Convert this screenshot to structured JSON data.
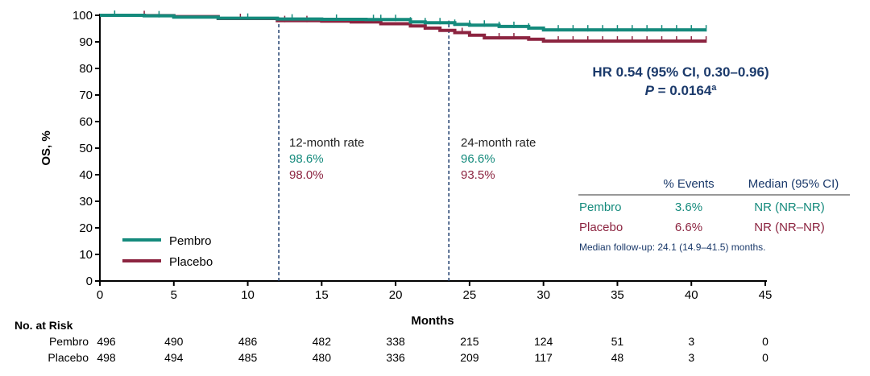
{
  "chart_data": {
    "type": "line",
    "ylabel": "OS, %",
    "xlabel": "Months",
    "xlim": [
      0,
      45
    ],
    "ylim": [
      0,
      100
    ],
    "xticks": [
      0,
      5,
      10,
      15,
      20,
      25,
      30,
      35,
      40,
      45
    ],
    "yticks": [
      0,
      10,
      20,
      30,
      40,
      50,
      60,
      70,
      80,
      90,
      100
    ],
    "grid": false,
    "legend_placement": "bottom-left",
    "series": [
      {
        "name": "Pembro",
        "color": "#148a7c",
        "x": [
          0,
          3,
          5,
          8,
          12,
          15,
          18,
          21,
          22,
          24,
          25,
          27,
          29,
          30,
          41
        ],
        "y": [
          100,
          99.8,
          99.3,
          98.9,
          98.6,
          98.5,
          98.4,
          97.5,
          97.2,
          96.6,
          96.3,
          95.8,
          95.2,
          94.5,
          94.5
        ],
        "censor_x": [
          1,
          4,
          10,
          13,
          16,
          18.5,
          19,
          20,
          21,
          22,
          23,
          24,
          25,
          26,
          27,
          28,
          29,
          31,
          32,
          33,
          34,
          35,
          36,
          37,
          38,
          39,
          40,
          41
        ]
      },
      {
        "name": "Placebo",
        "color": "#8c2440",
        "x": [
          0,
          3,
          5,
          8,
          12,
          15,
          17,
          19,
          21,
          22,
          23,
          24,
          25,
          26,
          29,
          30,
          41
        ],
        "y": [
          100,
          99.9,
          99.5,
          98.8,
          98.0,
          97.8,
          97.5,
          96.8,
          96.0,
          95.2,
          94.3,
          93.5,
          92.5,
          91.5,
          91.0,
          90.3,
          90.3
        ],
        "censor_x": [
          3,
          9.5,
          12.5,
          14,
          22,
          24.5,
          27,
          28,
          31,
          32,
          33,
          34,
          35,
          36,
          37,
          38,
          39,
          40,
          41
        ]
      }
    ],
    "annotations": {
      "rate12": {
        "x": 12.1,
        "title": "12-month rate",
        "pembro": "98.6%",
        "placebo": "98.0%"
      },
      "rate24": {
        "x": 23.6,
        "title": "24-month rate",
        "pembro": "96.6%",
        "placebo": "93.5%"
      },
      "hr": "HR 0.54 (95% CI, 0.30–0.96)",
      "p_label": "P",
      "p_value": " = 0.0164",
      "p_sup": "a",
      "table": {
        "headers": [
          "% Events",
          "Median (95% CI)"
        ],
        "rows": [
          {
            "label": "Pembro",
            "events": "3.6%",
            "median": "NR (NR–NR)"
          },
          {
            "label": "Placebo",
            "events": "6.6%",
            "median": "NR (NR–NR)"
          }
        ],
        "footnote": "Median follow-up: 24.1 (14.9–41.5) months."
      }
    },
    "risk_table": {
      "title": "No. at Risk",
      "rows": [
        {
          "label": "Pembro",
          "values": [
            "496",
            "490",
            "486",
            "482",
            "338",
            "215",
            "124",
            "51",
            "3",
            "0"
          ]
        },
        {
          "label": "Placebo",
          "values": [
            "498",
            "494",
            "485",
            "480",
            "336",
            "209",
            "117",
            "48",
            "3",
            "0"
          ]
        }
      ]
    },
    "colors": {
      "pembro": "#148a7c",
      "placebo": "#8c2440",
      "accent": "#1b3a6b"
    }
  }
}
